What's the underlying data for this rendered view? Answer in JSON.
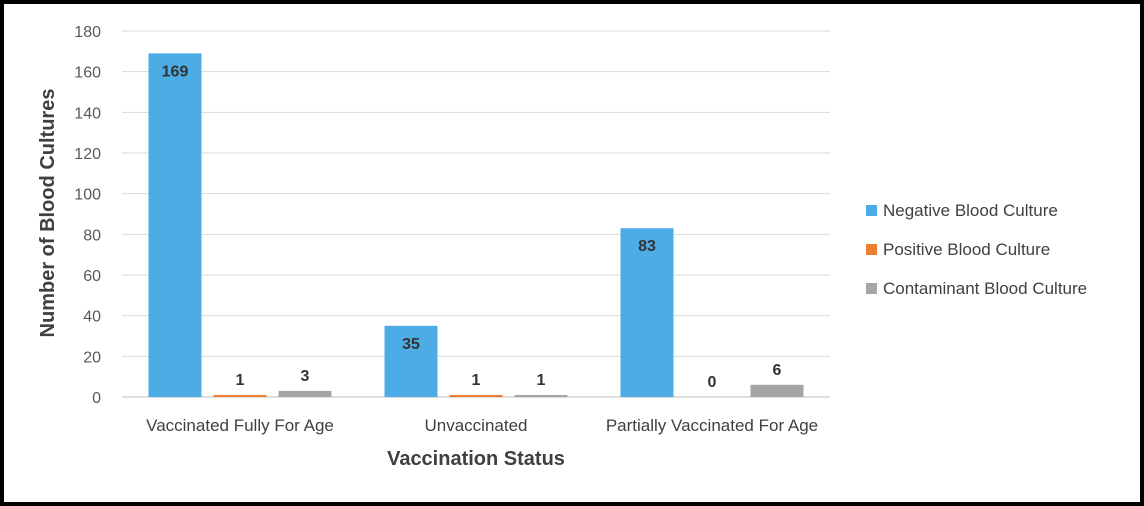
{
  "chart_data": {
    "type": "bar",
    "xlabel": "Vaccination Status",
    "ylabel": "Number of Blood Cultures",
    "ylim": [
      0,
      180
    ],
    "yticks": [
      0,
      20,
      40,
      60,
      80,
      100,
      120,
      140,
      160,
      180
    ],
    "grid": true,
    "legend_position": "right",
    "categories": [
      "Vaccinated Fully For Age",
      "Unvaccinated",
      "Partially Vaccinated For Age"
    ],
    "series": [
      {
        "name": "Negative Blood Culture",
        "color": "#4BACE6",
        "values": [
          169,
          35,
          83
        ]
      },
      {
        "name": "Positive Blood Culture",
        "color": "#ED7D31",
        "values": [
          1,
          1,
          0
        ]
      },
      {
        "name": "Contaminant Blood Culture",
        "color": "#A5A5A5",
        "values": [
          3,
          1,
          6
        ]
      }
    ]
  }
}
